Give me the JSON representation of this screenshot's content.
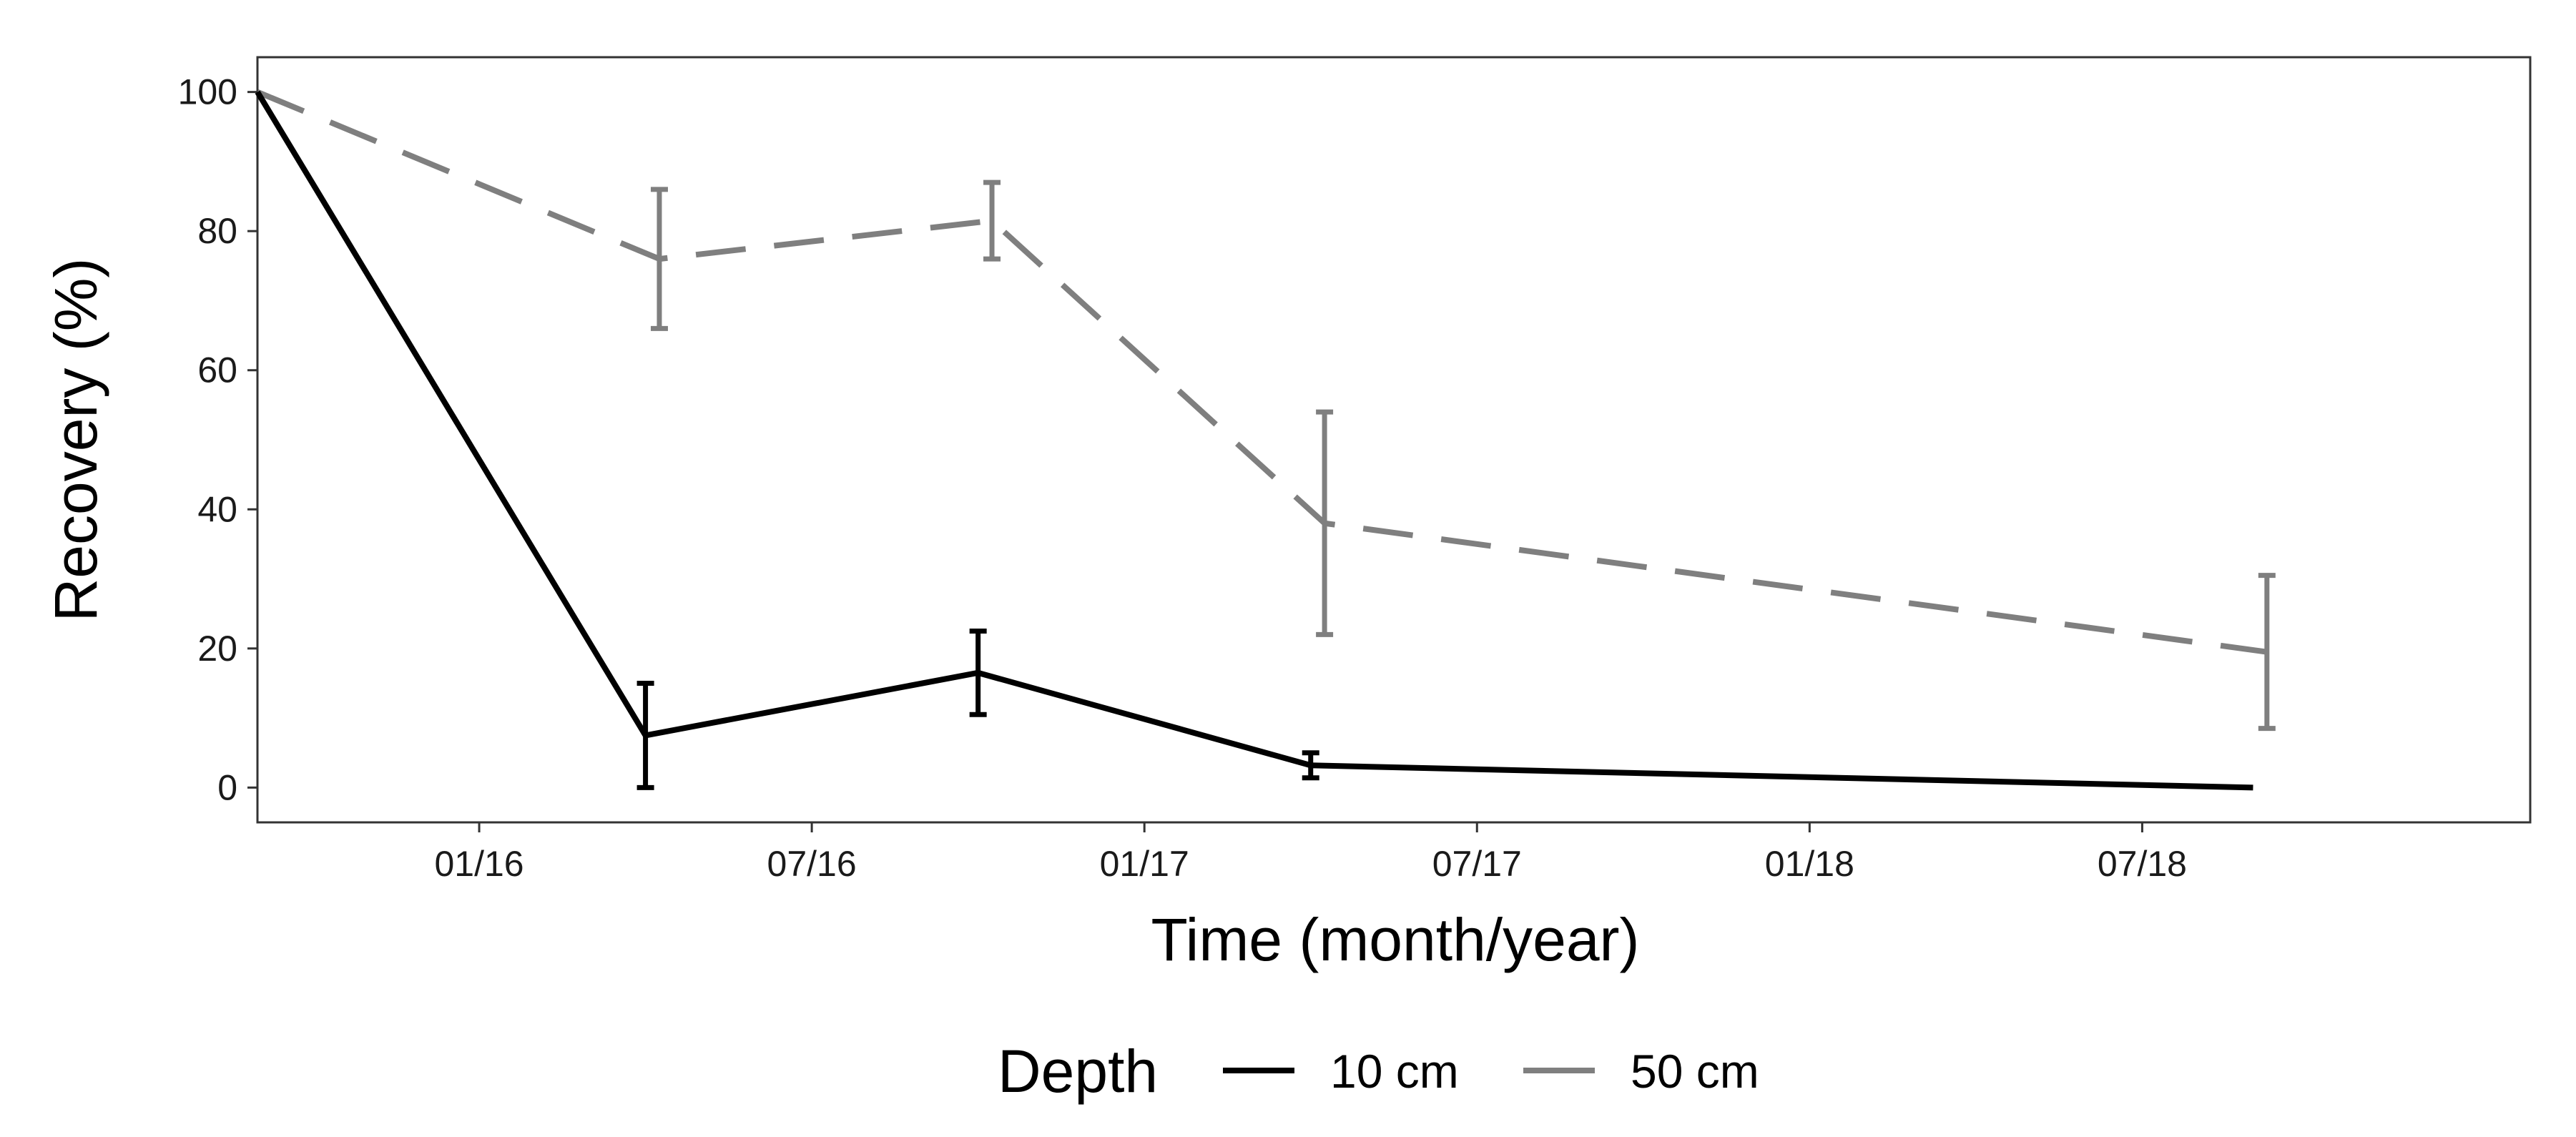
{
  "chart_data": {
    "type": "line",
    "title": "",
    "xlabel": "Time (month/year)",
    "ylabel": "Recovery (%)",
    "xlim": [
      0,
      41
    ],
    "ylim": [
      -5,
      105
    ],
    "x_ticks": [
      {
        "value": 4,
        "label": "01/16"
      },
      {
        "value": 10,
        "label": "07/16"
      },
      {
        "value": 16,
        "label": "01/17"
      },
      {
        "value": 22,
        "label": "07/17"
      },
      {
        "value": 28,
        "label": "01/18"
      },
      {
        "value": 34,
        "label": "07/18"
      }
    ],
    "y_ticks": [
      {
        "value": 0,
        "label": "0"
      },
      {
        "value": 20,
        "label": "20"
      },
      {
        "value": 40,
        "label": "40"
      },
      {
        "value": 60,
        "label": "60"
      },
      {
        "value": 80,
        "label": "80"
      },
      {
        "value": 100,
        "label": "100"
      }
    ],
    "grid": false,
    "legend": {
      "title": "Depth",
      "position": "bottom"
    },
    "series": [
      {
        "name": "10 cm",
        "color": "#000000",
        "dash": "solid",
        "x": [
          0,
          7,
          13,
          19,
          36
        ],
        "values": [
          100,
          7.5,
          16.5,
          3.2,
          0
        ],
        "error": [
          0,
          7.5,
          6,
          1.8,
          0
        ]
      },
      {
        "name": "50 cm",
        "color": "#7f7f7f",
        "dash": "dashed",
        "x": [
          0,
          7.25,
          13.25,
          19.25,
          36.25
        ],
        "values": [
          100,
          76,
          81.5,
          38,
          19.5
        ],
        "error": [
          0,
          10,
          5.5,
          16,
          11
        ]
      }
    ]
  }
}
